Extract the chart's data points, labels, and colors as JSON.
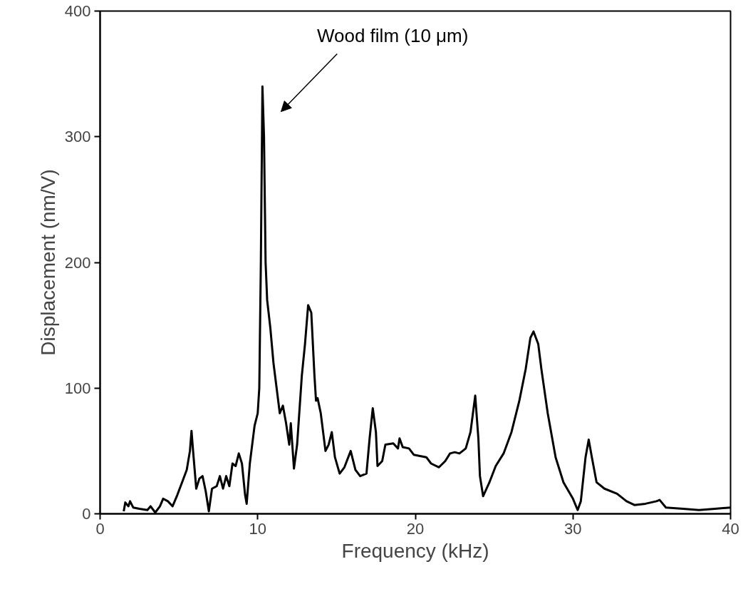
{
  "chart_data": {
    "type": "line",
    "xlabel": "Frequency (kHz)",
    "ylabel": "Displacement (nm/V)",
    "annotations": [
      "Wood film (10 μm)"
    ],
    "xlim": [
      0,
      40
    ],
    "ylim": [
      0,
      400
    ],
    "xticks": [
      0,
      10,
      20,
      30,
      40
    ],
    "yticks": [
      0,
      100,
      200,
      300,
      400
    ],
    "grid": false,
    "marker": "none",
    "line_style": "solid",
    "series": [
      {
        "color": "#000000",
        "x": [
          1.5,
          1.6,
          1.8,
          1.9,
          2.1,
          2.5,
          3.0,
          3.2,
          3.5,
          3.8,
          4.0,
          4.3,
          4.6,
          4.9,
          5.2,
          5.5,
          5.7,
          5.8,
          5.9,
          6.1,
          6.3,
          6.5,
          6.7,
          6.9,
          7.1,
          7.4,
          7.6,
          7.8,
          8.0,
          8.2,
          8.4,
          8.6,
          8.8,
          9.0,
          9.2,
          9.3,
          9.5,
          9.8,
          10.0,
          10.1,
          10.2,
          10.3,
          10.4,
          10.5,
          10.6,
          10.8,
          11.0,
          11.2,
          11.4,
          11.6,
          11.8,
          12.0,
          12.1,
          12.3,
          12.5,
          12.8,
          13.0,
          13.2,
          13.4,
          13.6,
          13.7,
          13.8,
          14.0,
          14.3,
          14.5,
          14.7,
          14.9,
          15.2,
          15.5,
          15.9,
          16.2,
          16.5,
          16.9,
          17.1,
          17.3,
          17.5,
          17.6,
          17.9,
          18.1,
          18.6,
          18.9,
          19.0,
          19.2,
          19.6,
          19.9,
          20.3,
          20.7,
          21.0,
          21.5,
          21.9,
          22.2,
          22.5,
          22.8,
          23.2,
          23.5,
          23.8,
          24.0,
          24.1,
          24.3,
          24.7,
          25.1,
          25.6,
          26.1,
          26.6,
          27.0,
          27.3,
          27.5,
          27.8,
          28.0,
          28.4,
          28.9,
          29.4,
          30.0,
          30.3,
          30.5,
          30.8,
          31.0,
          31.2,
          31.5,
          32.0,
          32.8,
          33.4,
          33.9,
          34.6,
          35.3,
          35.5,
          35.9,
          37.0,
          38.0,
          39.0,
          40.0
        ],
        "values": [
          2,
          9,
          6,
          10,
          5,
          4,
          3,
          6,
          1,
          6,
          12,
          10,
          6,
          15,
          25,
          35,
          50,
          66,
          50,
          20,
          28,
          30,
          18,
          2,
          20,
          22,
          30,
          20,
          30,
          22,
          40,
          38,
          48,
          40,
          15,
          8,
          40,
          70,
          80,
          100,
          200,
          340,
          300,
          200,
          170,
          148,
          120,
          100,
          80,
          86,
          72,
          55,
          72,
          36,
          55,
          110,
          135,
          166,
          160,
          110,
          90,
          92,
          80,
          50,
          55,
          65,
          45,
          32,
          37,
          50,
          35,
          30,
          32,
          60,
          84,
          65,
          38,
          42,
          55,
          56,
          52,
          60,
          53,
          52,
          47,
          46,
          45,
          40,
          37,
          42,
          48,
          49,
          48,
          52,
          65,
          94,
          60,
          30,
          14,
          25,
          38,
          48,
          65,
          90,
          115,
          140,
          145,
          135,
          115,
          80,
          45,
          25,
          12,
          3,
          10,
          45,
          59,
          45,
          25,
          20,
          16,
          10,
          7,
          8,
          10,
          11,
          5,
          4,
          3,
          4,
          5
        ]
      }
    ]
  }
}
